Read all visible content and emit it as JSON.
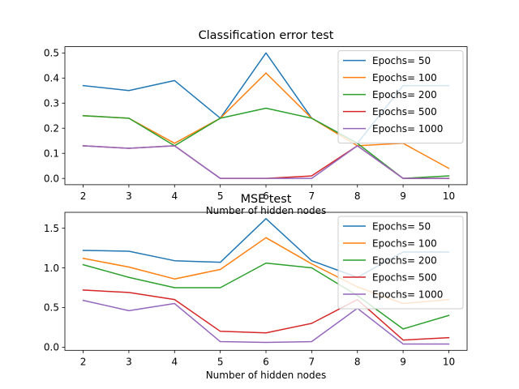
{
  "chart_data": [
    {
      "type": "line",
      "title": "Classification error test",
      "xlabel": "Number of hidden nodes",
      "ylabel": "",
      "x": [
        2,
        3,
        4,
        5,
        6,
        7,
        8,
        9,
        10
      ],
      "xlim": [
        1.6,
        10.4
      ],
      "ylim": [
        -0.025,
        0.525
      ],
      "yticks": [
        0.0,
        0.1,
        0.2,
        0.3,
        0.4,
        0.5
      ],
      "ytick_labels": [
        "0.0",
        "0.1",
        "0.2",
        "0.3",
        "0.4",
        "0.5"
      ],
      "legend": "top-right",
      "grid": false,
      "series": [
        {
          "name": "Epochs= 50",
          "color": "#1f77b4",
          "values": [
            0.37,
            0.35,
            0.39,
            0.24,
            0.5,
            0.24,
            0.14,
            0.37,
            0.37
          ]
        },
        {
          "name": "Epochs= 100",
          "color": "#ff7f0e",
          "values": [
            0.25,
            0.24,
            0.14,
            0.24,
            0.42,
            0.24,
            0.13,
            0.14,
            0.04
          ]
        },
        {
          "name": "Epochs= 200",
          "color": "#2ca02c",
          "values": [
            0.25,
            0.24,
            0.13,
            0.24,
            0.28,
            0.24,
            0.14,
            0.0,
            0.01
          ]
        },
        {
          "name": "Epochs= 500",
          "color": "#d62728",
          "values": [
            0.13,
            0.12,
            0.13,
            0.0,
            0.0,
            0.01,
            0.13,
            0.0,
            0.0
          ]
        },
        {
          "name": "Epochs= 1000",
          "color": "#9467bd",
          "values": [
            0.13,
            0.12,
            0.13,
            0.0,
            0.0,
            0.0,
            0.13,
            0.0,
            0.0
          ]
        }
      ]
    },
    {
      "type": "line",
      "title": "MSE test",
      "xlabel": "Number of hidden nodes",
      "ylabel": "",
      "x": [
        2,
        3,
        4,
        5,
        6,
        7,
        8,
        9,
        10
      ],
      "xlim": [
        1.6,
        10.4
      ],
      "ylim": [
        -0.04,
        1.7
      ],
      "yticks": [
        0.0,
        0.5,
        1.0,
        1.5
      ],
      "ytick_labels": [
        "0.0",
        "0.5",
        "1.0",
        "1.5"
      ],
      "legend": "top-right",
      "grid": false,
      "series": [
        {
          "name": "Epochs= 50",
          "color": "#1f77b4",
          "values": [
            1.22,
            1.21,
            1.09,
            1.07,
            1.62,
            1.09,
            0.88,
            1.2,
            1.2
          ]
        },
        {
          "name": "Epochs= 100",
          "color": "#ff7f0e",
          "values": [
            1.12,
            1.01,
            0.86,
            0.98,
            1.38,
            1.05,
            0.76,
            0.55,
            0.6
          ]
        },
        {
          "name": "Epochs= 200",
          "color": "#2ca02c",
          "values": [
            1.04,
            0.88,
            0.75,
            0.75,
            1.06,
            1.0,
            0.65,
            0.23,
            0.4
          ]
        },
        {
          "name": "Epochs= 500",
          "color": "#d62728",
          "values": [
            0.72,
            0.69,
            0.6,
            0.2,
            0.18,
            0.3,
            0.6,
            0.09,
            0.12
          ]
        },
        {
          "name": "Epochs= 1000",
          "color": "#9467bd",
          "values": [
            0.59,
            0.46,
            0.55,
            0.07,
            0.06,
            0.07,
            0.49,
            0.04,
            0.04
          ]
        }
      ]
    }
  ]
}
